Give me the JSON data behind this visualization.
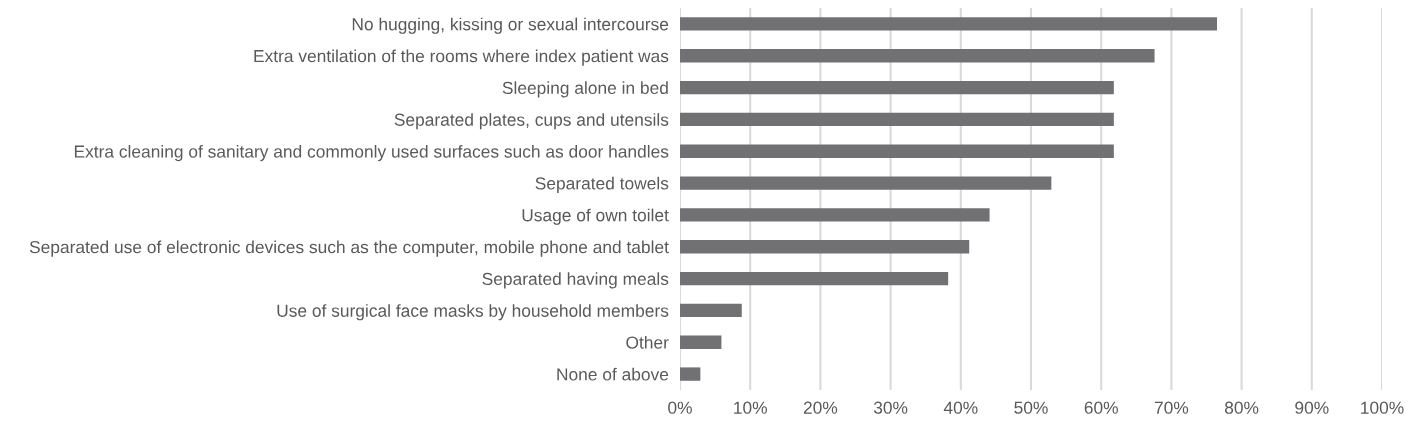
{
  "chart_data": {
    "type": "bar",
    "orientation": "horizontal",
    "categories": [
      "No hugging, kissing or sexual intercourse",
      "Extra ventilation of the rooms where index patient was",
      "Sleeping alone in bed",
      "Separated plates, cups and utensils",
      "Extra cleaning of sanitary and commonly used surfaces such as door handles",
      "Separated towels",
      "Usage of own toilet",
      "Separated use of electronic devices such as the computer, mobile phone and tablet",
      "Separated having meals",
      "Use of surgical face masks by household members",
      "Other",
      "None of above"
    ],
    "values": [
      76.5,
      67.6,
      61.8,
      61.8,
      61.8,
      52.9,
      44.1,
      41.2,
      38.2,
      8.8,
      5.9,
      2.9
    ],
    "color": "#717174",
    "xlim": [
      0,
      100
    ],
    "xticks": [
      {
        "value": 0,
        "label": "0%"
      },
      {
        "value": 10,
        "label": "10%"
      },
      {
        "value": 20,
        "label": "20%"
      },
      {
        "value": 30,
        "label": "30%"
      },
      {
        "value": 40,
        "label": "40%"
      },
      {
        "value": 50,
        "label": "50%"
      },
      {
        "value": 60,
        "label": "60%"
      },
      {
        "value": 70,
        "label": "70%"
      },
      {
        "value": 80,
        "label": "80%"
      },
      {
        "value": 90,
        "label": "90%"
      },
      {
        "value": 100,
        "label": "100%"
      }
    ],
    "grid": "x"
  }
}
